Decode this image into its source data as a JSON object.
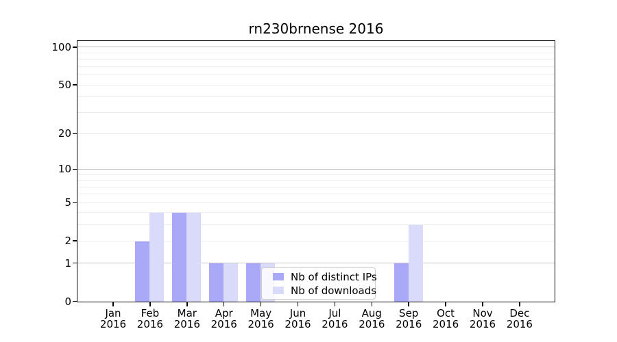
{
  "title": "rn230brnense 2016",
  "colors": {
    "ips_bar": "#a9a9f8",
    "downloads_bar": "#dadafa",
    "major_gridline": "#c2c2c2",
    "minor_gridline": "#ececec",
    "spine": "#000000",
    "legend_border": "#cccccc"
  },
  "legend": {
    "items": [
      {
        "label": "Nb of distinct IPs",
        "color_key": "ips_bar"
      },
      {
        "label": "Nb of downloads",
        "color_key": "downloads_bar"
      }
    ]
  },
  "y_axis": {
    "tick_labels": [
      "0",
      "1",
      "2",
      "5",
      "10",
      "20",
      "50",
      "100"
    ],
    "tick_values": [
      0,
      1,
      2,
      5,
      10,
      20,
      50,
      100
    ],
    "major_grid_values": [
      1,
      10,
      100
    ],
    "minor_grid_values": [
      2,
      3,
      4,
      5,
      6,
      7,
      8,
      9,
      20,
      30,
      40,
      50,
      60,
      70,
      80,
      90
    ]
  },
  "x_axis": {
    "tick_labels": [
      "Jan\n2016",
      "Feb\n2016",
      "Mar\n2016",
      "Apr\n2016",
      "May\n2016",
      "Jun\n2016",
      "Jul\n2016",
      "Aug\n2016",
      "Sep\n2016",
      "Oct\n2016",
      "Nov\n2016",
      "Dec\n2016"
    ]
  },
  "chart_data": {
    "type": "bar",
    "title": "rn230brnense 2016",
    "xlabel": "",
    "ylabel": "",
    "categories": [
      "Jan 2016",
      "Feb 2016",
      "Mar 2016",
      "Apr 2016",
      "May 2016",
      "Jun 2016",
      "Jul 2016",
      "Aug 2016",
      "Sep 2016",
      "Oct 2016",
      "Nov 2016",
      "Dec 2016"
    ],
    "series": [
      {
        "name": "Nb of distinct IPs",
        "color": "#a9a9f8",
        "values": [
          0,
          2,
          4,
          1,
          1,
          0,
          0,
          0,
          1,
          0,
          0,
          0
        ]
      },
      {
        "name": "Nb of downloads",
        "color": "#dadafa",
        "values": [
          0,
          4,
          4,
          1,
          1,
          0,
          0,
          0,
          3,
          0,
          0,
          0
        ]
      }
    ],
    "yscale": "log(1+v)",
    "y_ticks": [
      0,
      1,
      2,
      5,
      10,
      20,
      50,
      100
    ],
    "ylim": [
      0,
      115
    ],
    "grid": "horizontal",
    "legend_position": "lower center-right inside plot"
  }
}
